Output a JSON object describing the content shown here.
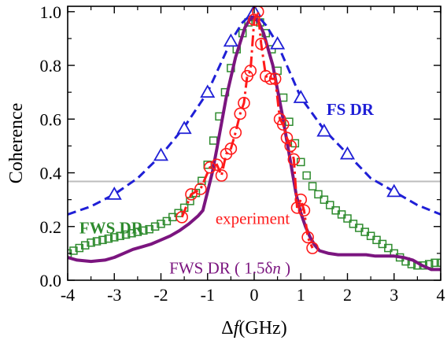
{
  "chart_data": {
    "type": "line",
    "title": "",
    "xlabel": "Δf (GHz)",
    "xlabel_parts": {
      "delta": "Δ",
      "symbol": "f",
      "unit": "(GHz)"
    },
    "ylabel": "Coherence",
    "xlim": [
      -4,
      4
    ],
    "ylim": [
      0.0,
      1.02
    ],
    "xticks": [
      -4,
      -3,
      -2,
      -1,
      0,
      1,
      2,
      3,
      4
    ],
    "yticks": [
      0.0,
      0.2,
      0.4,
      0.6,
      0.8,
      1.0
    ],
    "xtick_labels": [
      "-4",
      "-3",
      "-2",
      "-1",
      "0",
      "1",
      "2",
      "3",
      "4"
    ],
    "ytick_labels": [
      "0.0",
      "0.2",
      "0.4",
      "0.6",
      "0.8",
      "1.0"
    ],
    "grid": false,
    "reference_line": {
      "y": 0.368,
      "color": "#bdbdbd"
    },
    "series": [
      {
        "name": "FS DR",
        "color": "#1f1fd6",
        "style": "dashed-triangles",
        "label_at": [
          1.55,
          0.615
        ],
        "line_x": [
          -4.0,
          -3.5,
          -3.0,
          -2.5,
          -2.0,
          -1.5,
          -1.0,
          -0.5,
          -0.25,
          0.0,
          0.25,
          0.5,
          1.0,
          1.5,
          2.0,
          2.5,
          3.0,
          3.5,
          4.0
        ],
        "line_y": [
          0.245,
          0.275,
          0.32,
          0.38,
          0.465,
          0.57,
          0.7,
          0.89,
          0.96,
          1.0,
          0.95,
          0.88,
          0.68,
          0.56,
          0.47,
          0.38,
          0.33,
          0.28,
          0.245
        ],
        "marker_x": [
          -3,
          -2,
          -1.5,
          -1,
          -0.5,
          0,
          0.5,
          1,
          1.5,
          2,
          3
        ],
        "marker_y": [
          0.32,
          0.465,
          0.565,
          0.7,
          0.89,
          1.0,
          0.88,
          0.68,
          0.555,
          0.47,
          0.33
        ]
      },
      {
        "name": "FWS DR",
        "color": "#2e8b2e",
        "style": "squares",
        "label_at": [
          -3.75,
          0.175
        ],
        "x": [
          -4.0,
          -3.875,
          -3.75,
          -3.625,
          -3.5,
          -3.375,
          -3.25,
          -3.125,
          -3.0,
          -2.875,
          -2.75,
          -2.625,
          -2.5,
          -2.375,
          -2.25,
          -2.125,
          -2.0,
          -1.875,
          -1.75,
          -1.625,
          -1.5,
          -1.375,
          -1.25,
          -1.125,
          -1.0,
          -0.875,
          -0.75,
          -0.625,
          -0.5,
          -0.375,
          -0.25,
          -0.125,
          0.0,
          0.125,
          0.25,
          0.375,
          0.5,
          0.625,
          0.75,
          0.875,
          1.0,
          1.125,
          1.25,
          1.375,
          1.5,
          1.625,
          1.75,
          1.875,
          2.0,
          2.125,
          2.25,
          2.375,
          2.5,
          2.625,
          2.75,
          2.875,
          3.0,
          3.125,
          3.25,
          3.375,
          3.5,
          3.625,
          3.75,
          3.875,
          4.0
        ],
        "y": [
          0.1,
          0.11,
          0.12,
          0.13,
          0.14,
          0.145,
          0.15,
          0.155,
          0.16,
          0.165,
          0.17,
          0.175,
          0.18,
          0.185,
          0.19,
          0.2,
          0.21,
          0.22,
          0.235,
          0.25,
          0.27,
          0.295,
          0.325,
          0.37,
          0.43,
          0.52,
          0.61,
          0.7,
          0.79,
          0.86,
          0.92,
          0.96,
          0.98,
          0.96,
          0.92,
          0.86,
          0.78,
          0.68,
          0.59,
          0.51,
          0.44,
          0.39,
          0.35,
          0.32,
          0.3,
          0.28,
          0.26,
          0.245,
          0.23,
          0.21,
          0.195,
          0.18,
          0.165,
          0.15,
          0.135,
          0.12,
          0.1,
          0.085,
          0.07,
          0.06,
          0.055,
          0.055,
          0.06,
          0.065,
          0.065
        ]
      },
      {
        "name": "experiment",
        "color": "#ff1a1a",
        "style": "dash-dot-circles",
        "label_at": [
          -0.83,
          0.21
        ],
        "x": [
          -1.55,
          -1.35,
          -1.15,
          -0.95,
          -0.8,
          -0.7,
          -0.6,
          -0.5,
          -0.4,
          -0.3,
          -0.22,
          -0.15,
          -0.08,
          0.0,
          0.08,
          0.15,
          0.25,
          0.35,
          0.45,
          0.55,
          0.62,
          0.7,
          0.78,
          0.85,
          0.92,
          1.0,
          1.07,
          1.15,
          1.25
        ],
        "y": [
          0.235,
          0.32,
          0.34,
          0.42,
          0.43,
          0.39,
          0.47,
          0.49,
          0.55,
          0.62,
          0.66,
          0.76,
          0.78,
          0.97,
          1.0,
          0.88,
          0.76,
          0.75,
          0.75,
          0.6,
          0.58,
          0.53,
          0.5,
          0.45,
          0.27,
          0.3,
          0.26,
          0.16,
          0.12
        ]
      },
      {
        "name": "FWS DR ( 1.5δn )",
        "label_parts": {
          "prefix": "FWS DR ( 1.5δ",
          "italic": "n",
          "suffix": " )"
        },
        "color": "#7b157f",
        "style": "solid",
        "label_at": [
          -1.82,
          0.025
        ],
        "x": [
          -4.0,
          -3.8,
          -3.5,
          -3.2,
          -3.0,
          -2.8,
          -2.6,
          -2.4,
          -2.2,
          -2.0,
          -1.8,
          -1.6,
          -1.4,
          -1.2,
          -1.1,
          -1.0,
          -0.9,
          -0.8,
          -0.6,
          -0.4,
          -0.2,
          -0.1,
          0.0,
          0.1,
          0.2,
          0.4,
          0.6,
          0.8,
          0.9,
          1.0,
          1.1,
          1.2,
          1.3,
          1.4,
          1.6,
          1.8,
          2.0,
          2.2,
          2.4,
          2.6,
          2.8,
          3.0,
          3.2,
          3.4,
          3.6,
          3.8,
          4.0
        ],
        "y": [
          0.085,
          0.075,
          0.07,
          0.075,
          0.085,
          0.1,
          0.115,
          0.125,
          0.135,
          0.15,
          0.165,
          0.185,
          0.21,
          0.24,
          0.26,
          0.33,
          0.4,
          0.49,
          0.68,
          0.83,
          0.94,
          0.97,
          0.98,
          0.96,
          0.92,
          0.8,
          0.62,
          0.42,
          0.32,
          0.25,
          0.2,
          0.16,
          0.13,
          0.11,
          0.1,
          0.095,
          0.095,
          0.095,
          0.095,
          0.09,
          0.09,
          0.09,
          0.085,
          0.075,
          0.055,
          0.04,
          0.04
        ]
      }
    ]
  }
}
